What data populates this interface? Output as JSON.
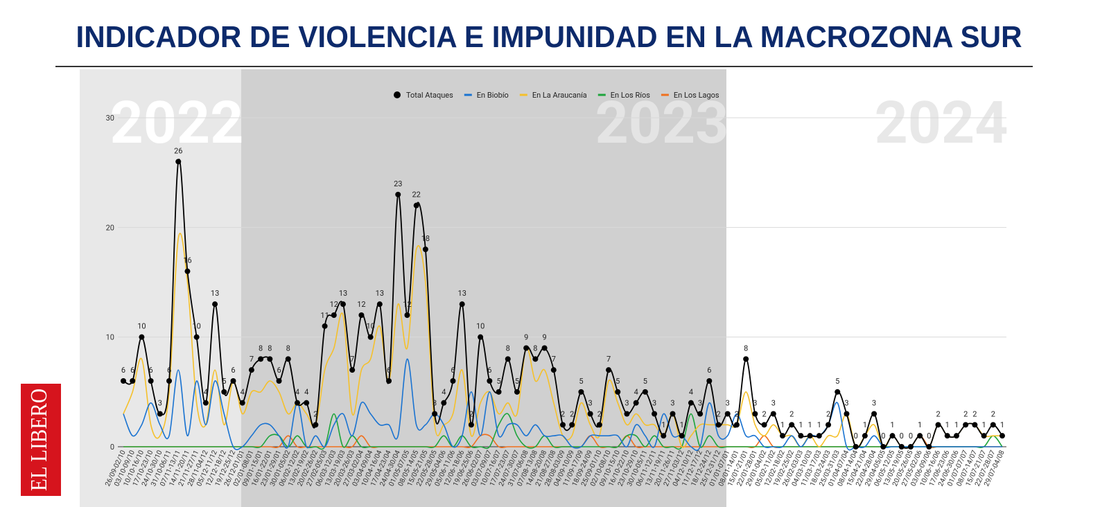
{
  "title": "INDICADOR DE VIOLENCIA E IMPUNIDAD EN LA MACROZONA SUR",
  "logo": "EL LIBERO",
  "periods": [
    "2022",
    "2023",
    "2024"
  ],
  "chart_data": {
    "type": "line",
    "categories": [
      "26/09-02/10",
      "03/10-09/10",
      "10/10-16/10",
      "17/10-23/10",
      "24/10-30/10",
      "31/10-06/11",
      "07/11-13/11",
      "14/11-20/11",
      "21/11-27/11",
      "28/11-04/12",
      "05/12-11/12",
      "12/12-18/12",
      "19/12-25/12",
      "26/12-01/01",
      "02/01-08/01",
      "09/01-15/01",
      "16/01-22/01",
      "23/01-29/01",
      "30/01-05/02",
      "06/02-12/02",
      "13/02-19/02",
      "20/02-26/02",
      "27/02-05/03",
      "06/03-12/03",
      "13/03-19/03",
      "20/03-26/03",
      "27/03-02/04",
      "03/04-09/04",
      "10/04-16/04",
      "17/04-23/04",
      "24/04-30/04",
      "01/05-07/05",
      "08/05-14/05",
      "15/05-21/05",
      "22/05-28/05",
      "29/05-04/06",
      "05/06-11/06",
      "12/06-18/06",
      "19/06-25/06",
      "26/06-02/07",
      "03/07-09/07",
      "10/07-16/07",
      "17/07-23/07",
      "24/07-30/07",
      "31/07-06/08",
      "07/08-13/08",
      "14/08-20/08",
      "21/08-27/08",
      "28/08-03/09",
      "04/09-10/09",
      "11/09-17/09",
      "18/09-24/09",
      "25/09-01/10",
      "02/10-08/10",
      "09/10-15/10",
      "16/10-22/10",
      "23/10-29/10",
      "30/10-05/11",
      "06/11-12/11",
      "13/11-19/11",
      "20/11-26/11",
      "27/11-03/12",
      "04/12-10/12",
      "11/12-17/12",
      "18/12-24/12",
      "25/12-31/12",
      "01/01-07/01",
      "08/01-14/01",
      "15/01-21/01",
      "22/01-28/01",
      "29/01-04/02",
      "05/02-11/02",
      "12/02-18/02",
      "19/02-25/02",
      "26/02-03/03",
      "04/03-10/03",
      "11/03-17/03",
      "18/03-24/03",
      "25/03-31/03",
      "01/04-07/04",
      "08/04-14/04",
      "15/04-21/04",
      "22/04-28/04",
      "29/04-05/05",
      "06/05-12/05",
      "13/05-19/05",
      "20/05-26/05",
      "27/05-02/06",
      "03/06-09/06",
      "10/06-16/06",
      "17/06-23/06",
      "24/06-30/06",
      "01/07-07/07",
      "08/07-14/07",
      "15/07-21/07",
      "22/07-28/07",
      "29/07-04/08"
    ],
    "series": [
      {
        "name": "Total Ataques",
        "color": "#000000",
        "values": [
          6,
          6,
          10,
          6,
          3,
          6,
          26,
          16,
          10,
          4,
          13,
          5,
          6,
          4,
          7,
          8,
          8,
          6,
          8,
          4,
          4,
          2,
          11,
          12,
          13,
          7,
          12,
          10,
          13,
          6,
          23,
          12,
          22,
          18,
          3,
          4,
          6,
          13,
          2,
          10,
          6,
          5,
          8,
          5,
          9,
          8,
          9,
          7,
          2,
          2,
          5,
          3,
          2,
          7,
          5,
          3,
          4,
          5,
          3,
          1,
          3,
          1,
          4,
          3,
          6,
          2,
          3,
          2,
          8,
          3,
          2,
          3,
          1,
          2,
          1,
          1,
          1,
          2,
          5,
          3,
          0,
          1,
          3,
          0,
          1,
          0,
          0,
          1,
          0,
          2,
          1,
          1,
          2,
          2,
          1,
          2,
          1
        ]
      },
      {
        "name": "En Biobío",
        "color": "#1a73d1",
        "values": [
          3,
          1,
          2,
          4,
          2,
          1,
          7,
          1,
          6,
          2,
          6,
          3,
          0,
          0,
          1,
          2,
          2,
          1,
          0,
          4,
          0,
          1,
          0,
          2,
          3,
          1,
          4,
          3,
          2,
          2,
          1,
          8,
          2,
          2,
          3,
          2,
          0,
          1,
          5,
          1,
          5,
          1,
          2,
          2,
          1,
          2,
          1,
          1,
          1,
          0,
          0,
          1,
          1,
          1,
          1,
          0,
          2,
          1,
          0,
          3,
          1,
          1,
          0,
          0,
          4,
          1,
          1,
          3,
          1,
          1,
          0,
          0,
          0,
          1,
          0,
          1,
          1,
          2,
          4,
          0,
          0,
          0,
          1,
          0,
          0,
          0,
          0,
          0,
          0,
          0,
          0,
          0,
          0,
          0,
          0,
          0,
          0
        ]
      },
      {
        "name": "En La Araucanía",
        "color": "#f5c02a",
        "values": [
          3,
          5,
          8,
          2,
          1,
          5,
          19,
          15,
          4,
          2,
          7,
          2,
          6,
          3,
          5,
          5,
          6,
          5,
          3,
          4,
          3,
          2,
          7,
          9,
          12,
          3,
          7,
          8,
          11,
          6,
          13,
          9,
          18,
          15,
          2,
          2,
          3,
          7,
          1,
          4,
          5,
          3,
          4,
          3,
          9,
          6,
          7,
          4,
          1,
          1,
          4,
          2,
          1,
          6,
          4,
          2,
          3,
          2,
          2,
          1,
          3,
          0,
          1,
          2,
          2,
          2,
          2,
          2,
          5,
          2,
          1,
          2,
          1,
          1,
          0,
          1,
          0,
          1,
          1,
          3,
          0,
          1,
          2,
          0,
          1,
          0,
          0,
          1,
          0,
          2,
          1,
          1,
          2,
          2,
          1,
          1,
          1
        ]
      },
      {
        "name": "En Los Ríos",
        "color": "#1ea53c",
        "values": [
          0,
          0,
          0,
          0,
          0,
          0,
          0,
          0,
          0,
          0,
          0,
          0,
          0,
          0,
          0,
          0,
          1,
          1,
          0,
          1,
          0,
          0,
          0,
          3,
          0,
          1,
          0,
          0,
          0,
          0,
          0,
          0,
          0,
          0,
          0,
          1,
          0,
          1,
          0,
          0,
          0,
          2,
          3,
          1,
          0,
          0,
          1,
          0,
          0,
          0,
          0,
          0,
          0,
          0,
          0,
          1,
          1,
          0,
          1,
          0,
          0,
          0,
          3,
          0,
          1,
          0,
          0,
          0,
          0,
          0,
          0,
          0,
          0,
          0,
          0,
          0,
          0,
          0,
          0,
          0,
          0,
          0,
          0,
          0,
          0,
          0,
          0,
          0,
          0,
          0,
          0,
          0,
          0,
          0,
          0,
          1,
          0
        ]
      },
      {
        "name": "En Los Lagos",
        "color": "#f0701e",
        "values": [
          0,
          0,
          0,
          0,
          0,
          0,
          0,
          0,
          0,
          0,
          0,
          0,
          0,
          0,
          0,
          0,
          0,
          0,
          1,
          0,
          0,
          0,
          0,
          0,
          0,
          0,
          1,
          0,
          0,
          0,
          0,
          0,
          0,
          0,
          0,
          0,
          0,
          0,
          0,
          1,
          1,
          0,
          0,
          0,
          0,
          0,
          0,
          0,
          0,
          0,
          0,
          1,
          0,
          0,
          0,
          1,
          0,
          0,
          0,
          0,
          0,
          0,
          0,
          0,
          0,
          0,
          0,
          0,
          0,
          0,
          1,
          0,
          0,
          0,
          0,
          0,
          0,
          0,
          0,
          0,
          0,
          0,
          0,
          0,
          0,
          0,
          0,
          1,
          0,
          0,
          0,
          0,
          0,
          0,
          0,
          0,
          0
        ]
      }
    ],
    "ylim": [
      0,
      30
    ],
    "yticks": [
      0,
      10,
      20,
      30
    ],
    "grid": true,
    "legend": "top"
  }
}
